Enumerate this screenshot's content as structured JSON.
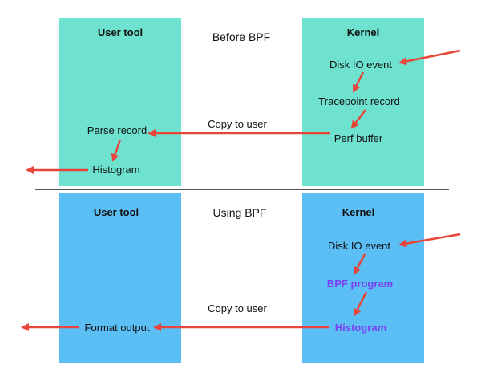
{
  "colors": {
    "before_box": "#6ee2cf",
    "using_box": "#5bbef5",
    "arrow": "#e8443a",
    "bpf_text": "#7b3ff2",
    "divider": "#555555"
  },
  "before": {
    "section_title": "Before BPF",
    "user_tool_label": "User tool",
    "kernel_label": "Kernel",
    "kernel_steps": [
      "Disk IO event",
      "Tracepoint record",
      "Perf buffer"
    ],
    "user_steps": [
      "Parse record",
      "Histogram"
    ],
    "copy_label": "Copy to user"
  },
  "using": {
    "section_title": "Using BPF",
    "user_tool_label": "User tool",
    "kernel_label": "Kernel",
    "kernel_steps": [
      "Disk IO event",
      "BPF program",
      "Histogram"
    ],
    "user_steps": [
      "Format output"
    ],
    "copy_label": "Copy to user"
  }
}
